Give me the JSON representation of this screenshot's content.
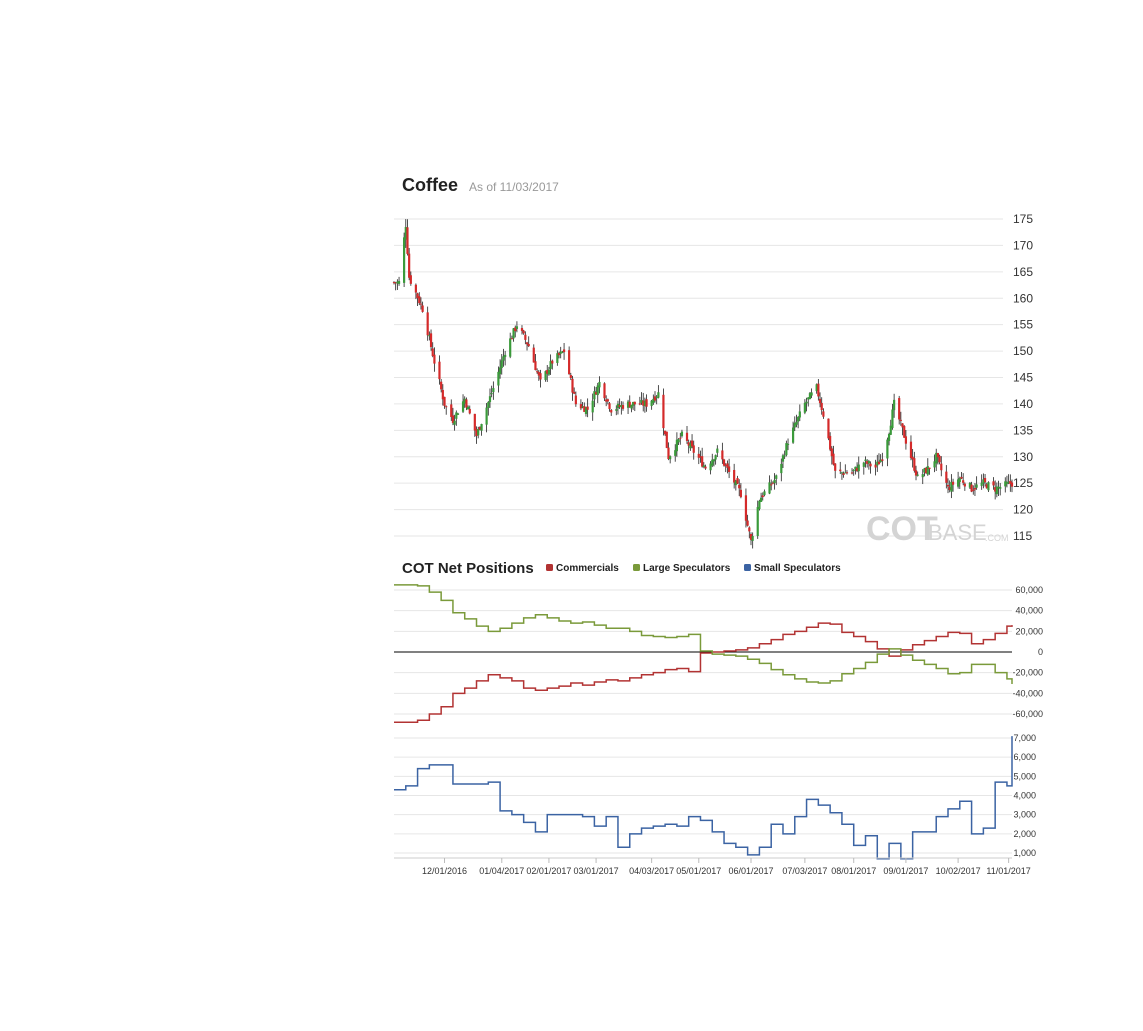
{
  "header": {
    "title": "Coffee",
    "as_of": "As of 11/03/2017"
  },
  "watermark": {
    "part1": "COT",
    "part2": "BASE",
    "part3": ".COM"
  },
  "cot": {
    "title": "COT Net Positions"
  },
  "colors": {
    "up": "#3a9a3a",
    "down": "#d42a2a",
    "commercials": "#b23333",
    "large_speculators": "#7a9a3a",
    "small_speculators": "#3b63a3",
    "grid": "#e6e6e6",
    "zero": "#000000"
  },
  "chart_data": [
    {
      "type": "candlestick",
      "title": "Coffee",
      "ylim": [
        113,
        176
      ],
      "yticks": [
        115,
        120,
        125,
        130,
        135,
        140,
        145,
        150,
        155,
        160,
        165,
        170,
        175
      ],
      "grid": true,
      "anchors": [
        [
          "11/04/2016",
          163
        ],
        [
          "11/08/2016",
          174
        ],
        [
          "11/10/2016",
          164
        ],
        [
          "11/18/2016",
          158
        ],
        [
          "11/25/2016",
          148
        ],
        [
          "12/01/2016",
          140
        ],
        [
          "12/06/2016",
          137
        ],
        [
          "12/13/2016",
          141
        ],
        [
          "12/20/2016",
          134
        ],
        [
          "12/30/2016",
          143
        ],
        [
          "01/06/2017",
          150
        ],
        [
          "01/13/2017",
          155
        ],
        [
          "01/20/2017",
          151
        ],
        [
          "01/27/2017",
          144
        ],
        [
          "02/03/2017",
          148
        ],
        [
          "02/10/2017",
          150
        ],
        [
          "02/17/2017",
          140
        ],
        [
          "02/24/2017",
          139
        ],
        [
          "03/03/2017",
          144
        ],
        [
          "03/10/2017",
          139
        ],
        [
          "03/20/2017",
          140
        ],
        [
          "03/31/2017",
          140
        ],
        [
          "04/07/2017",
          142
        ],
        [
          "04/13/2017",
          130
        ],
        [
          "04/21/2017",
          134
        ],
        [
          "04/28/2017",
          131
        ],
        [
          "05/05/2017",
          128
        ],
        [
          "05/12/2017",
          131
        ],
        [
          "05/19/2017",
          127
        ],
        [
          "05/26/2017",
          123
        ],
        [
          "06/01/2017",
          114
        ],
        [
          "06/06/2017",
          122
        ],
        [
          "06/16/2017",
          126
        ],
        [
          "06/23/2017",
          133
        ],
        [
          "07/03/2017",
          140
        ],
        [
          "07/10/2017",
          143
        ],
        [
          "07/14/2017",
          138
        ],
        [
          "07/21/2017",
          127
        ],
        [
          "07/31/2017",
          127
        ],
        [
          "08/07/2017",
          129
        ],
        [
          "08/14/2017",
          128
        ],
        [
          "08/18/2017",
          130
        ],
        [
          "08/22/2017",
          135
        ],
        [
          "08/25/2017",
          140
        ],
        [
          "09/01/2017",
          133
        ],
        [
          "09/08/2017",
          126
        ],
        [
          "09/15/2017",
          128
        ],
        [
          "09/19/2017",
          130
        ],
        [
          "09/26/2017",
          124
        ],
        [
          "10/03/2017",
          126
        ],
        [
          "10/10/2017",
          124
        ],
        [
          "10/17/2017",
          125
        ],
        [
          "10/24/2017",
          124
        ],
        [
          "11/03/2017",
          125
        ]
      ]
    },
    {
      "type": "line",
      "title": "COT Net Positions",
      "ylim": [
        -75000,
        68000
      ],
      "yticks": [
        60000,
        40000,
        20000,
        0,
        -20000,
        -40000,
        -60000
      ],
      "ytick_labels": [
        "60,000",
        "40,000",
        "20,000",
        "0",
        "-20,000",
        "-40,000",
        "-60,000"
      ],
      "grid": true,
      "series": [
        {
          "name": "Commercials",
          "points": [
            [
              "11/01/2016",
              -68000
            ],
            [
              "11/15/2016",
              -66000
            ],
            [
              "11/22/2016",
              -60000
            ],
            [
              "11/29/2016",
              -53000
            ],
            [
              "12/06/2016",
              -40000
            ],
            [
              "12/13/2016",
              -35000
            ],
            [
              "12/20/2016",
              -28000
            ],
            [
              "12/27/2016",
              -22000
            ],
            [
              "01/03/2017",
              -25000
            ],
            [
              "01/10/2017",
              -28000
            ],
            [
              "01/17/2017",
              -35000
            ],
            [
              "01/24/2017",
              -37000
            ],
            [
              "01/31/2017",
              -35000
            ],
            [
              "02/07/2017",
              -33000
            ],
            [
              "02/14/2017",
              -30000
            ],
            [
              "02/21/2017",
              -32000
            ],
            [
              "02/28/2017",
              -29000
            ],
            [
              "03/07/2017",
              -27000
            ],
            [
              "03/14/2017",
              -28000
            ],
            [
              "03/21/2017",
              -25000
            ],
            [
              "03/28/2017",
              -22000
            ],
            [
              "04/04/2017",
              -20000
            ],
            [
              "04/11/2017",
              -17000
            ],
            [
              "04/18/2017",
              -16000
            ],
            [
              "04/25/2017",
              -19000
            ],
            [
              "05/02/2017",
              -1000
            ],
            [
              "05/09/2017",
              0
            ],
            [
              "05/16/2017",
              1000
            ],
            [
              "05/23/2017",
              2000
            ],
            [
              "05/30/2017",
              4000
            ],
            [
              "06/06/2017",
              8000
            ],
            [
              "06/13/2017",
              12000
            ],
            [
              "06/20/2017",
              17000
            ],
            [
              "06/27/2017",
              20000
            ],
            [
              "07/04/2017",
              24000
            ],
            [
              "07/11/2017",
              28000
            ],
            [
              "07/18/2017",
              27000
            ],
            [
              "07/25/2017",
              19000
            ],
            [
              "08/01/2017",
              15000
            ],
            [
              "08/08/2017",
              10000
            ],
            [
              "08/15/2017",
              3000
            ],
            [
              "08/22/2017",
              -4000
            ],
            [
              "08/29/2017",
              2000
            ],
            [
              "09/05/2017",
              7000
            ],
            [
              "09/12/2017",
              11000
            ],
            [
              "09/19/2017",
              15000
            ],
            [
              "09/26/2017",
              19000
            ],
            [
              "10/03/2017",
              18000
            ],
            [
              "10/10/2017",
              8000
            ],
            [
              "10/17/2017",
              12000
            ],
            [
              "10/24/2017",
              18000
            ],
            [
              "10/31/2017",
              25000
            ],
            [
              "11/03/2017",
              26000
            ]
          ]
        },
        {
          "name": "Large Speculators",
          "points": [
            [
              "11/01/2016",
              65000
            ],
            [
              "11/15/2016",
              64000
            ],
            [
              "11/22/2016",
              58000
            ],
            [
              "11/29/2016",
              50000
            ],
            [
              "12/06/2016",
              38000
            ],
            [
              "12/13/2016",
              32000
            ],
            [
              "12/20/2016",
              25000
            ],
            [
              "12/27/2016",
              20000
            ],
            [
              "01/03/2017",
              23000
            ],
            [
              "01/10/2017",
              28000
            ],
            [
              "01/17/2017",
              33000
            ],
            [
              "01/24/2017",
              36000
            ],
            [
              "01/31/2017",
              33000
            ],
            [
              "02/07/2017",
              30000
            ],
            [
              "02/14/2017",
              28000
            ],
            [
              "02/21/2017",
              29000
            ],
            [
              "02/28/2017",
              26000
            ],
            [
              "03/07/2017",
              23000
            ],
            [
              "03/14/2017",
              23000
            ],
            [
              "03/21/2017",
              20000
            ],
            [
              "03/28/2017",
              16000
            ],
            [
              "04/04/2017",
              15000
            ],
            [
              "04/11/2017",
              14000
            ],
            [
              "04/18/2017",
              15000
            ],
            [
              "04/25/2017",
              17000
            ],
            [
              "05/02/2017",
              1000
            ],
            [
              "05/09/2017",
              -2000
            ],
            [
              "05/16/2017",
              -3000
            ],
            [
              "05/23/2017",
              -4000
            ],
            [
              "05/30/2017",
              -7000
            ],
            [
              "06/06/2017",
              -11000
            ],
            [
              "06/13/2017",
              -17000
            ],
            [
              "06/20/2017",
              -22000
            ],
            [
              "06/27/2017",
              -26000
            ],
            [
              "07/04/2017",
              -29000
            ],
            [
              "07/11/2017",
              -30000
            ],
            [
              "07/18/2017",
              -28000
            ],
            [
              "07/25/2017",
              -21000
            ],
            [
              "08/01/2017",
              -16000
            ],
            [
              "08/08/2017",
              -10000
            ],
            [
              "08/15/2017",
              -2000
            ],
            [
              "08/22/2017",
              3000
            ],
            [
              "08/29/2017",
              -3000
            ],
            [
              "09/05/2017",
              -8000
            ],
            [
              "09/12/2017",
              -12000
            ],
            [
              "09/19/2017",
              -16000
            ],
            [
              "09/26/2017",
              -21000
            ],
            [
              "10/03/2017",
              -20000
            ],
            [
              "10/10/2017",
              -12000
            ],
            [
              "10/17/2017",
              -12000
            ],
            [
              "10/24/2017",
              -20000
            ],
            [
              "10/31/2017",
              -26000
            ],
            [
              "11/03/2017",
              -31000
            ]
          ]
        }
      ]
    },
    {
      "type": "line",
      "ylim": [
        500,
        7500
      ],
      "yticks": [
        1000,
        2000,
        3000,
        4000,
        5000,
        6000,
        7000
      ],
      "ytick_labels": [
        "1,000",
        "2,000",
        "3,000",
        "4,000",
        "5,000",
        "6,000",
        "7,000"
      ],
      "grid": true,
      "xticks": [
        "12/01/2016",
        "01/04/2017",
        "02/01/2017",
        "03/01/2017",
        "04/03/2017",
        "05/01/2017",
        "06/01/2017",
        "07/03/2017",
        "08/01/2017",
        "09/01/2017",
        "10/02/2017",
        "11/01/2017"
      ],
      "series": [
        {
          "name": "Small Speculators",
          "points": [
            [
              "11/01/2016",
              4300
            ],
            [
              "11/08/2016",
              4500
            ],
            [
              "11/15/2016",
              5400
            ],
            [
              "11/22/2016",
              5600
            ],
            [
              "12/06/2016",
              4600
            ],
            [
              "12/27/2016",
              4700
            ],
            [
              "01/03/2017",
              3200
            ],
            [
              "01/10/2017",
              3000
            ],
            [
              "01/17/2017",
              2600
            ],
            [
              "01/24/2017",
              2100
            ],
            [
              "01/31/2017",
              3000
            ],
            [
              "02/21/2017",
              2900
            ],
            [
              "02/28/2017",
              2400
            ],
            [
              "03/07/2017",
              2900
            ],
            [
              "03/14/2017",
              1300
            ],
            [
              "03/21/2017",
              2000
            ],
            [
              "03/28/2017",
              2300
            ],
            [
              "04/04/2017",
              2400
            ],
            [
              "04/11/2017",
              2500
            ],
            [
              "04/18/2017",
              2400
            ],
            [
              "04/25/2017",
              2900
            ],
            [
              "05/02/2017",
              2700
            ],
            [
              "05/09/2017",
              2100
            ],
            [
              "05/16/2017",
              1500
            ],
            [
              "05/23/2017",
              1300
            ],
            [
              "05/30/2017",
              900
            ],
            [
              "06/06/2017",
              1300
            ],
            [
              "06/13/2017",
              2500
            ],
            [
              "06/20/2017",
              2000
            ],
            [
              "06/27/2017",
              2900
            ],
            [
              "07/04/2017",
              3800
            ],
            [
              "07/11/2017",
              3500
            ],
            [
              "07/18/2017",
              3100
            ],
            [
              "07/25/2017",
              2500
            ],
            [
              "08/01/2017",
              1400
            ],
            [
              "08/08/2017",
              1900
            ],
            [
              "08/15/2017",
              700
            ],
            [
              "08/22/2017",
              1500
            ],
            [
              "08/29/2017",
              700
            ],
            [
              "09/05/2017",
              2100
            ],
            [
              "09/19/2017",
              2900
            ],
            [
              "09/26/2017",
              3300
            ],
            [
              "10/03/2017",
              3700
            ],
            [
              "10/10/2017",
              2000
            ],
            [
              "10/17/2017",
              2300
            ],
            [
              "10/24/2017",
              4700
            ],
            [
              "10/31/2017",
              4500
            ],
            [
              "11/07/2017",
              5700
            ],
            [
              "11/14/2017",
              6400
            ],
            [
              "11/21/2017",
              7100
            ]
          ]
        }
      ]
    }
  ]
}
